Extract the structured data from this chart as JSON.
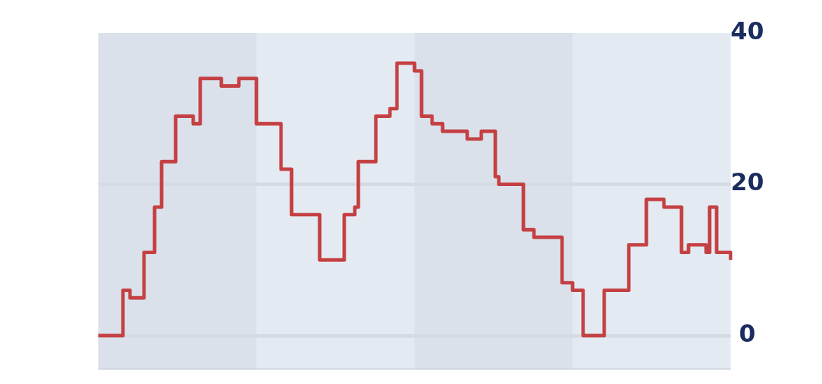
{
  "chart_data": {
    "type": "step",
    "categories": [
      null,
      null,
      null,
      null,
      null,
      null,
      null,
      null,
      null,
      null,
      null,
      null,
      null,
      null,
      null,
      null,
      null,
      null,
      null,
      null,
      null,
      null,
      null,
      null,
      null,
      null,
      null,
      null,
      null,
      null,
      null,
      null,
      null,
      null,
      null,
      null,
      null,
      null,
      null,
      null,
      null,
      null,
      null,
      null,
      null,
      null,
      null,
      null,
      null,
      null,
      null,
      null,
      null,
      null,
      null,
      null,
      null,
      null,
      null,
      null,
      null,
      null,
      null,
      null,
      null,
      null,
      null,
      null,
      null,
      null,
      null,
      null,
      null,
      null,
      null,
      null,
      null,
      null,
      null,
      null,
      null,
      null,
      null,
      null,
      null,
      null,
      null,
      null,
      null,
      null,
      null,
      null,
      null,
      null,
      null,
      null,
      null,
      null,
      null,
      null,
      null,
      null,
      null,
      null,
      null,
      null,
      null,
      null,
      null,
      null,
      null,
      null,
      null,
      null,
      null,
      null,
      null,
      null,
      null,
      null,
      null,
      null,
      null,
      null,
      null,
      null,
      null,
      null,
      null,
      null,
      null,
      null,
      null,
      null,
      null,
      null,
      null,
      null,
      null,
      null,
      null,
      null,
      null,
      null,
      null,
      null,
      null,
      null,
      null,
      null,
      null,
      null,
      null,
      null,
      null,
      null,
      null,
      null,
      null,
      null,
      null,
      null,
      null,
      null,
      null,
      null,
      null,
      null,
      null,
      null,
      null,
      null,
      null,
      null,
      null,
      null,
      null,
      null,
      null,
      null,
      null
    ],
    "series": [
      {
        "color": "#c44042",
        "values": [
          0,
          0,
          0,
          0,
          0,
          0,
          0,
          6,
          6,
          5,
          5,
          5,
          5,
          11,
          11,
          11,
          17,
          17,
          23,
          23,
          23,
          23,
          29,
          29,
          29,
          29,
          29,
          28,
          28,
          34,
          34,
          34,
          34,
          34,
          34,
          33,
          33,
          33,
          33,
          33,
          34,
          34,
          34,
          34,
          34,
          28,
          28,
          28,
          28,
          28,
          28,
          28,
          22,
          22,
          22,
          16,
          16,
          16,
          16,
          16,
          16,
          16,
          16,
          10,
          10,
          10,
          10,
          10,
          10,
          10,
          16,
          16,
          16,
          17,
          23,
          23,
          23,
          23,
          23,
          29,
          29,
          29,
          29,
          30,
          30,
          36,
          36,
          36,
          36,
          36,
          35,
          35,
          29,
          29,
          29,
          28,
          28,
          28,
          27,
          27,
          27,
          27,
          27,
          27,
          27,
          26,
          26,
          26,
          26,
          27,
          27,
          27,
          27,
          21,
          20,
          20,
          20,
          20,
          20,
          20,
          20,
          14,
          14,
          14,
          13,
          13,
          13,
          13,
          13,
          13,
          13,
          13,
          7,
          7,
          7,
          6,
          6,
          6,
          0,
          0,
          0,
          0,
          0,
          0,
          6,
          6,
          6,
          6,
          6,
          6,
          6,
          12,
          12,
          12,
          12,
          12,
          18,
          18,
          18,
          18,
          18,
          17,
          17,
          17,
          17,
          17,
          11,
          11,
          12,
          12,
          12,
          12,
          12,
          11,
          17,
          17,
          11,
          11,
          11,
          11,
          10
        ]
      }
    ],
    "ylim": [
      -4.5,
      40
    ],
    "yticks": [
      0,
      20,
      40
    ],
    "grid": "y",
    "tick_labels": "y"
  }
}
